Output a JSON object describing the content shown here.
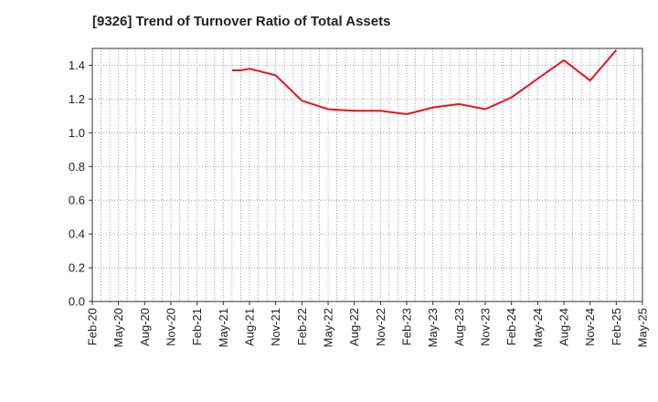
{
  "chart_data": {
    "type": "line",
    "title": "[9326]  Trend of Turnover Ratio of Total Assets",
    "xlabel": "",
    "ylabel": "",
    "x_tick_labels": [
      "Feb-20",
      "May-20",
      "Aug-20",
      "Nov-20",
      "Feb-21",
      "May-21",
      "Aug-21",
      "Nov-21",
      "Feb-22",
      "May-22",
      "Aug-22",
      "Nov-22",
      "Feb-23",
      "May-23",
      "Aug-23",
      "Nov-23",
      "Feb-24",
      "May-24",
      "Aug-24",
      "Nov-24",
      "Feb-25",
      "May-25"
    ],
    "y_tick_labels": [
      "0.0",
      "0.2",
      "0.4",
      "0.6",
      "0.8",
      "1.0",
      "1.2",
      "1.4"
    ],
    "ylim": [
      0,
      1.5
    ],
    "grid": true,
    "series": [
      {
        "color": "#e8141b",
        "x": [
          "Jun-21",
          "Jul-21",
          "Aug-21",
          "Nov-21",
          "Feb-22",
          "May-22",
          "Aug-22",
          "Nov-22",
          "Feb-23",
          "May-23",
          "Aug-23",
          "Nov-23",
          "Feb-24",
          "May-24",
          "Aug-24",
          "Nov-24",
          "Feb-25"
        ],
        "values": [
          1.37,
          1.37,
          1.38,
          1.34,
          1.19,
          1.14,
          1.13,
          1.13,
          1.11,
          1.15,
          1.17,
          1.14,
          1.21,
          1.32,
          1.43,
          1.31,
          1.49
        ]
      }
    ]
  }
}
